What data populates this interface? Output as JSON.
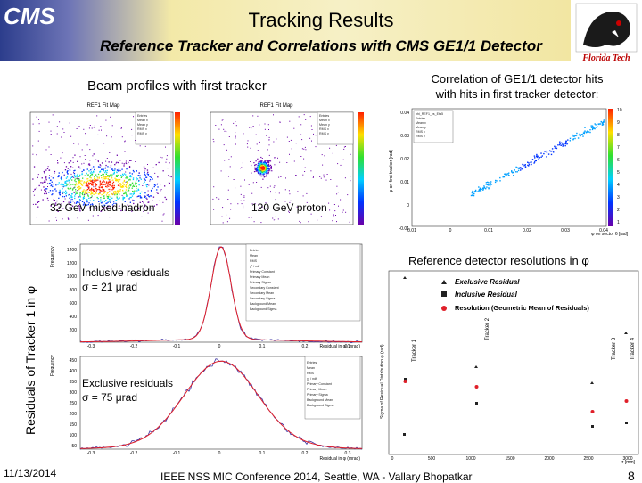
{
  "header": {
    "title": "Tracking Results",
    "subtitle": "Reference Tracker and Correlations with CMS GE1/1 Detector",
    "cms_logo": "CMS",
    "fsu_logo": "Florida Tech"
  },
  "beam": {
    "heading": "Beam profiles with first tracker",
    "left_plot_title": "REF1 Fit Map",
    "right_plot_title": "REF1 Fit Map",
    "left_label": "32 GeV mixed-hadron",
    "right_label": "120 GeV proton"
  },
  "correlation": {
    "heading_line1": "Correlation of GE1/1 detector hits",
    "heading_line2": "with hits in first tracker detector:",
    "xlabel": "φ on sector 6 [rad]",
    "ylabel": "φ on first tracker [rad]",
    "x_ticks": [
      "0.01",
      "0",
      "0.01",
      "0.02",
      "0.03",
      "0.04"
    ],
    "y_ticks": [
      "0.04",
      "0.03",
      "0.02",
      "0.01",
      "0",
      "-0.01"
    ],
    "colorbar_ticks": [
      "10",
      "9",
      "8",
      "7",
      "6",
      "5",
      "4",
      "3",
      "2",
      "1"
    ]
  },
  "residuals": {
    "side_label": "Residuals of Tracker 1 in φ",
    "inclusive_line1": "Inclusive residuals",
    "inclusive_line2": "σ = 21 μrad",
    "exclusive_line1": "Exclusive residuals",
    "exclusive_line2": "σ = 75 μrad",
    "xlabel": "Residual in φ (mrad)",
    "ylabel": "Frequency",
    "top_y_ticks": [
      "1400",
      "1200",
      "1000",
      "800",
      "600",
      "400",
      "200"
    ],
    "bottom_y_ticks": [
      "450",
      "400",
      "350",
      "300",
      "250",
      "200",
      "150",
      "100",
      "50"
    ],
    "x_ticks": [
      "-0.3",
      "-0.2",
      "-0.1",
      "0",
      "0.1",
      "0.2",
      "0.3"
    ]
  },
  "resolution": {
    "heading": "Reference detector resolutions in φ",
    "legend_excl": "Exclusive Residual",
    "legend_incl": "Inclusive Residual",
    "legend_geo": "Resolution (Geometric Mean of Residuals)",
    "tracker_labels": [
      "Tracker 1",
      "Tracker 2",
      "Tracker 3",
      "Tracker 4"
    ],
    "xlabel": "z [mm]",
    "x_ticks": [
      "0",
      "500",
      "1000",
      "1500",
      "2000",
      "2500",
      "3000"
    ],
    "ylabel": "Sigma of Residual Distribution φ (rad)"
  },
  "footer": {
    "date": "11/13/2014",
    "conference": "IEEE NSS MIC Conference 2014, Seattle, WA - Vallary Bhopatkar",
    "page": "8"
  }
}
